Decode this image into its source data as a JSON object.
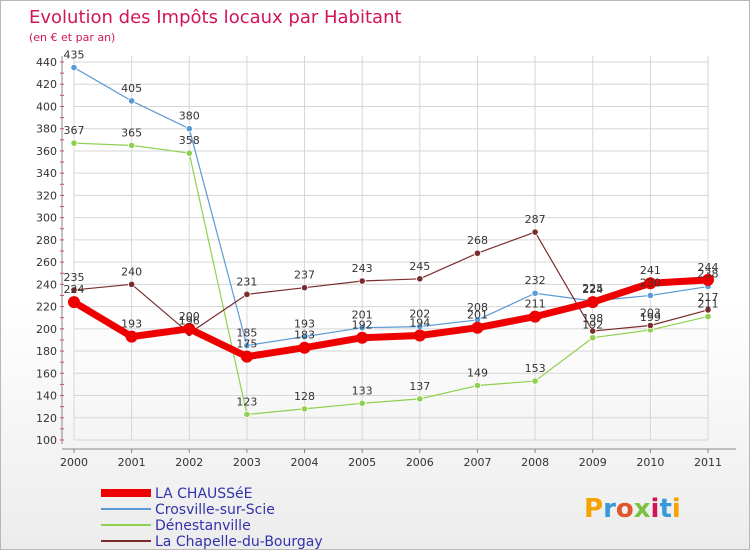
{
  "chart_data": {
    "type": "line",
    "title": "Evolution des Impôts locaux par Habitant",
    "subtitle": "(en € et par an)",
    "x": [
      "2000",
      "2001",
      "2002",
      "2003",
      "2004",
      "2005",
      "2006",
      "2007",
      "2008",
      "2009",
      "2010",
      "2011"
    ],
    "ylim": [
      100,
      440
    ],
    "yticks": [
      100,
      120,
      140,
      160,
      180,
      200,
      220,
      240,
      260,
      280,
      300,
      320,
      340,
      360,
      380,
      400,
      420,
      440
    ],
    "grid": true,
    "legend_position": "bottom-left",
    "series": [
      {
        "name": "Crosville-sur-Scie",
        "color": "#5b9bd5",
        "values": [
          435,
          405,
          380,
          185,
          193,
          201,
          202,
          208,
          232,
          225,
          230,
          238
        ],
        "labels": [
          "435",
          "405",
          "380",
          "185",
          "193",
          "201",
          "202",
          "208",
          "232",
          "225",
          "230",
          "238"
        ]
      },
      {
        "name": "Dénestanville",
        "color": "#8fd14f",
        "values": [
          367,
          365,
          358,
          123,
          128,
          133,
          137,
          149,
          153,
          192,
          199,
          211
        ],
        "labels": [
          "367",
          "365",
          "358",
          "123",
          "128",
          "133",
          "137",
          "149",
          "153",
          "192",
          "199",
          "211"
        ]
      },
      {
        "name": "La Chapelle-du-Bourgay",
        "color": "#7b2c2c",
        "values": [
          235,
          240,
          196,
          231,
          237,
          243,
          245,
          268,
          287,
          198,
          203,
          217
        ],
        "labels": [
          "235",
          "240",
          "196",
          "231",
          "237",
          "243",
          "245",
          "268",
          "287",
          "198",
          "203",
          "217"
        ]
      },
      {
        "name": "LA CHAUSSéE",
        "color": "#ee0000",
        "values": [
          224,
          193,
          200,
          175,
          183,
          192,
          194,
          201,
          211,
          224,
          241,
          244
        ],
        "labels": [
          "224",
          "193",
          "200",
          "175",
          "183",
          "192",
          "194",
          "201",
          "211",
          "224",
          "241",
          "244"
        ]
      }
    ],
    "legend_order": [
      3,
      0,
      1,
      2
    ]
  },
  "logo": {
    "text": "Proxiti"
  }
}
